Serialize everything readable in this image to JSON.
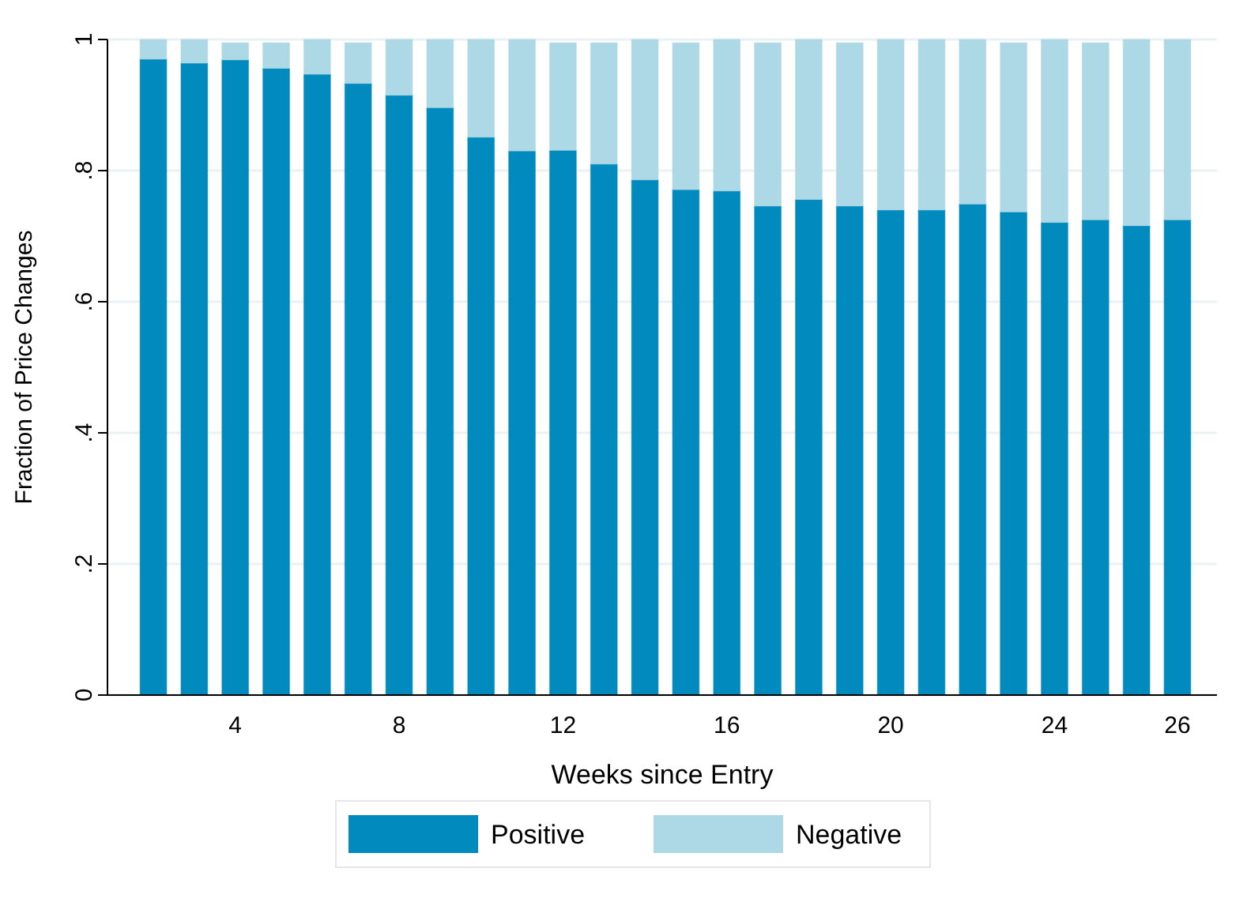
{
  "chart_data": {
    "type": "bar",
    "stacked": true,
    "xlabel": "Weeks since Entry",
    "ylabel": "Fraction of Price Changes",
    "categories": [
      null,
      null,
      "4",
      null,
      null,
      null,
      "8",
      null,
      null,
      null,
      "12",
      null,
      null,
      null,
      "16",
      null,
      null,
      null,
      "20",
      null,
      null,
      null,
      "24",
      null,
      null,
      "26"
    ],
    "series": [
      {
        "name": "Positive",
        "color": "#018abd",
        "values": [
          0.97,
          0.964,
          0.969,
          0.956,
          0.947,
          0.933,
          0.915,
          0.896,
          0.851,
          0.83,
          0.831,
          0.81,
          0.786,
          0.771,
          0.769,
          0.746,
          0.756,
          0.746,
          0.74,
          0.74,
          0.749,
          0.737,
          0.721,
          0.725,
          0.716,
          0.725
        ]
      },
      {
        "name": "Negative",
        "color": "#add8e6",
        "values": [
          0.03,
          0.036,
          0.026,
          0.039,
          0.053,
          0.062,
          0.085,
          0.104,
          0.149,
          0.17,
          0.164,
          0.185,
          0.214,
          0.224,
          0.231,
          0.249,
          0.244,
          0.249,
          0.26,
          0.26,
          0.251,
          0.258,
          0.279,
          0.27,
          0.284,
          0.275
        ]
      }
    ],
    "ylim": [
      0,
      1
    ],
    "yticks": [
      0,
      {
        "value": 0.2,
        "label": ".2"
      },
      {
        "value": 0.4,
        "label": ".4"
      },
      {
        "value": 0.6,
        "label": ".6"
      },
      {
        "value": 0.8,
        "label": ".8"
      },
      1
    ],
    "grid": "y",
    "legend": "bottom"
  }
}
